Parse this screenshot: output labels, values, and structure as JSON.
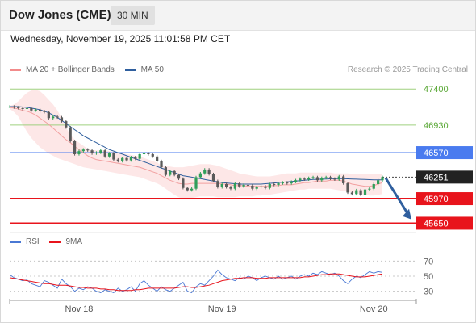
{
  "header": {
    "title": "Dow Jones (CME)",
    "timeframe": "30 MIN"
  },
  "timestamp": "Wednesday, November 19, 2025 11:01:58 PM CET",
  "legend": {
    "main": [
      {
        "label": "MA 20 + Bollinger Bands",
        "color": "#f28b8b"
      },
      {
        "label": "MA 50",
        "color": "#2f5f9e"
      }
    ],
    "rsi": [
      {
        "label": "RSI",
        "color": "#4a78d4"
      },
      {
        "label": "9MA",
        "color": "#e8141c"
      }
    ]
  },
  "credit": "Research © 2025 Trading Central",
  "colors": {
    "candle_up": "#2f9e5a",
    "candle_down": "#5a5a5a",
    "ma20": "#f2a0a0",
    "ma50": "#2f5f9e",
    "band_fill": "#fde3e3",
    "support": "#e8141c",
    "pivot": "#4a7bef",
    "resistance": "#9fd07f",
    "arrow": "#2f5f9e"
  },
  "chart_data": [
    {
      "type": "line",
      "name": "price",
      "ylim": [
        45560,
        47560
      ],
      "x_ticks": [
        "Nov 18",
        "Nov 19",
        "Nov 20"
      ],
      "x_tick_index": [
        16,
        49,
        84
      ],
      "levels": [
        {
          "label": "47400",
          "value": 47400,
          "kind": "resistance"
        },
        {
          "label": "46930",
          "value": 46930,
          "kind": "resistance"
        },
        {
          "label": "46570",
          "value": 46570,
          "kind": "pivot"
        },
        {
          "label": "45970",
          "value": 45970,
          "kind": "support"
        },
        {
          "label": "45650",
          "value": 45650,
          "kind": "support"
        }
      ],
      "current_price": {
        "label": "46251",
        "value": 46251
      },
      "target_arrow": {
        "from": 46240,
        "to": 45700
      },
      "close": [
        47170,
        47160,
        47150,
        47140,
        47150,
        47120,
        47130,
        47110,
        47100,
        47020,
        47040,
        47030,
        46980,
        46900,
        46720,
        46550,
        46590,
        46610,
        46600,
        46560,
        46570,
        46600,
        46520,
        46560,
        46480,
        46460,
        46500,
        46470,
        46510,
        46490,
        46550,
        46560,
        46550,
        46520,
        46460,
        46380,
        46280,
        46330,
        46280,
        46230,
        46110,
        46080,
        46100,
        46250,
        46300,
        46350,
        46290,
        46200,
        46120,
        46160,
        46120,
        46100,
        46170,
        46130,
        46150,
        46140,
        46100,
        46120,
        46130,
        46110,
        46160,
        46150,
        46170,
        46180,
        46170,
        46190,
        46210,
        46230,
        46220,
        46240,
        46250,
        46210,
        46240,
        46250,
        46230,
        46220,
        46260,
        46170,
        46050,
        46030,
        46080,
        46020,
        46090,
        46100,
        46160,
        46210,
        46251
      ],
      "ma20": [
        47160,
        47150,
        47140,
        47120,
        47110,
        47090,
        47060,
        47020,
        46980,
        46940,
        46890,
        46840,
        46790,
        46740,
        46700,
        46650,
        46610,
        46570,
        46530,
        46500,
        46480,
        46470,
        46460,
        46450,
        46440,
        46430,
        46420,
        46410,
        46400,
        46390,
        46380,
        46360,
        46340,
        46320,
        46300,
        46270,
        46240,
        46210,
        46190,
        46170,
        46160,
        46160,
        46170,
        46170,
        46170,
        46170,
        46170,
        46170,
        46170,
        46160,
        46160,
        46150,
        46140,
        46140,
        46140,
        46130,
        46130,
        46130,
        46130,
        46130,
        46140,
        46140,
        46140,
        46150,
        46150,
        46150,
        46160,
        46170,
        46180,
        46180,
        46190,
        46200,
        46200,
        46200,
        46210,
        46210,
        46210,
        46200,
        46180,
        46160,
        46150,
        46140,
        46130,
        46130,
        46140,
        46160,
        46180
      ],
      "band_upper": [
        47180,
        47200,
        47240,
        47300,
        47350,
        47380,
        47390,
        47370,
        47320,
        47260,
        47200,
        47120,
        47020,
        46900,
        46800,
        46740,
        46700,
        46660,
        46620,
        46600,
        46600,
        46600,
        46600,
        46590,
        46580,
        46570,
        46560,
        46550,
        46540,
        46530,
        46520,
        46500,
        46480,
        46460,
        46440,
        46410,
        46400,
        46390,
        46380,
        46380,
        46380,
        46390,
        46400,
        46410,
        46420,
        46420,
        46420,
        46410,
        46400,
        46380,
        46360,
        46340,
        46320,
        46300,
        46290,
        46280,
        46270,
        46260,
        46260,
        46260,
        46260,
        46270,
        46280,
        46290,
        46300,
        46300,
        46300,
        46310,
        46310,
        46310,
        46310,
        46310,
        46310,
        46310,
        46310,
        46300,
        46300,
        46300,
        46300,
        46290,
        46290,
        46290,
        46290,
        46290,
        46290,
        46290,
        46290
      ],
      "band_lower": [
        47140,
        47100,
        47040,
        46940,
        46840,
        46760,
        46700,
        46640,
        46600,
        46560,
        46530,
        46500,
        46480,
        46460,
        46440,
        46420,
        46400,
        46380,
        46370,
        46360,
        46350,
        46340,
        46330,
        46320,
        46310,
        46300,
        46290,
        46280,
        46270,
        46260,
        46250,
        46230,
        46210,
        46190,
        46170,
        46140,
        46100,
        46060,
        46020,
        45990,
        45970,
        45970,
        45980,
        45990,
        46000,
        46000,
        46000,
        46000,
        45990,
        45990,
        45990,
        45990,
        45990,
        46000,
        46000,
        46000,
        46000,
        46010,
        46010,
        46020,
        46020,
        46030,
        46040,
        46050,
        46060,
        46070,
        46080,
        46090,
        46090,
        46100,
        46100,
        46100,
        46100,
        46100,
        46100,
        46090,
        46080,
        46070,
        46060,
        46050,
        46040,
        46030,
        46020,
        46010,
        46010,
        46020,
        46030
      ],
      "ma50": [
        47170,
        47170,
        47170,
        47165,
        47160,
        47150,
        47140,
        47130,
        47110,
        47090,
        47060,
        47030,
        46990,
        46950,
        46910,
        46870,
        46830,
        46790,
        46760,
        46730,
        46700,
        46670,
        46640,
        46610,
        46590,
        46570,
        46550,
        46530,
        46510,
        46490,
        46470,
        46450,
        46430,
        46410,
        46390,
        46370,
        46350,
        46330,
        46310,
        46290,
        46270,
        46260,
        46250,
        46240,
        46230,
        46220,
        46210,
        46200,
        46190,
        46180,
        46175,
        46170,
        46165,
        46160,
        46160,
        46160,
        46160,
        46160,
        46160,
        46165,
        46170,
        46175,
        46180,
        46185,
        46190,
        46195,
        46200,
        46205,
        46210,
        46215,
        46220,
        46222,
        46224,
        46226,
        46228,
        46230,
        46230,
        46230,
        46228,
        46226,
        46224,
        46222,
        46220,
        46218,
        46216,
        46216,
        46216
      ]
    },
    {
      "type": "line",
      "name": "RSI panel",
      "ylim": [
        20,
        80
      ],
      "y_ticks": [
        70,
        50,
        30
      ],
      "rsi": [
        52,
        48,
        46,
        44,
        45,
        40,
        38,
        36,
        44,
        42,
        38,
        34,
        46,
        40,
        36,
        30,
        34,
        32,
        36,
        34,
        30,
        28,
        32,
        30,
        28,
        34,
        30,
        32,
        36,
        30,
        40,
        44,
        38,
        34,
        30,
        36,
        32,
        30,
        34,
        38,
        42,
        30,
        28,
        36,
        40,
        38,
        44,
        50,
        58,
        52,
        48,
        46,
        44,
        48,
        46,
        50,
        48,
        44,
        48,
        50,
        48,
        46,
        50,
        46,
        48,
        50,
        46,
        50,
        52,
        50,
        54,
        52,
        56,
        54,
        52,
        54,
        50,
        44,
        40,
        46,
        50,
        48,
        52,
        56,
        54,
        56,
        55
      ],
      "ma9": [
        48,
        47,
        46,
        45,
        44,
        43,
        42,
        41,
        40,
        40,
        39,
        38,
        38,
        38,
        37,
        36,
        35,
        35,
        34,
        34,
        34,
        33,
        33,
        32,
        32,
        31,
        31,
        31,
        31,
        32,
        32,
        33,
        34,
        34,
        34,
        34,
        34,
        34,
        34,
        35,
        36,
        36,
        35,
        35,
        36,
        37,
        38,
        40,
        42,
        44,
        45,
        46,
        47,
        47,
        48,
        48,
        48,
        47,
        47,
        47,
        48,
        48,
        48,
        48,
        48,
        48,
        48,
        48,
        49,
        49,
        50,
        51,
        52,
        52,
        53,
        53,
        53,
        52,
        51,
        50,
        49,
        49,
        49,
        50,
        51,
        52,
        53
      ]
    }
  ]
}
